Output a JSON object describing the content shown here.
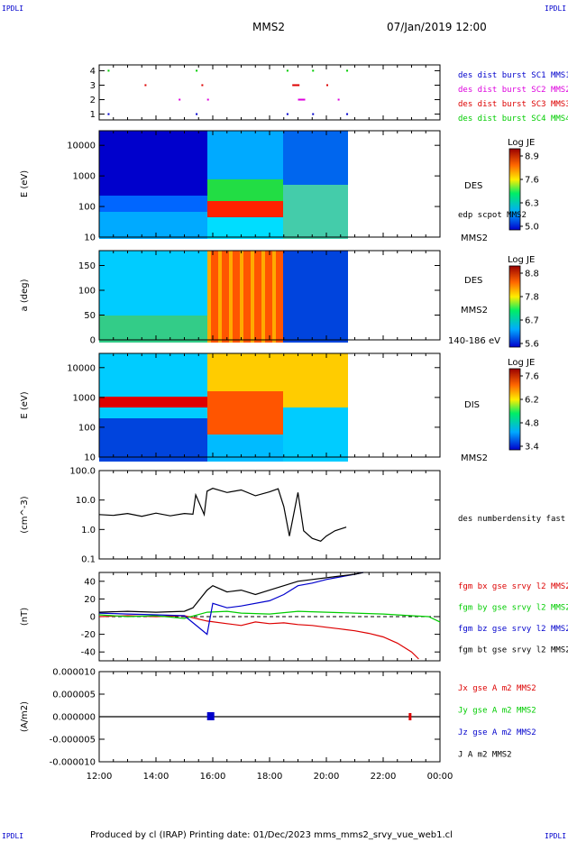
{
  "header": {
    "corner_tl": "IPDLI",
    "corner_tr": "IPDLI",
    "corner_bl": "IPDLI",
    "corner_br": "IPDLI",
    "spacecraft": "MMS2",
    "datetime": "07/Jan/2019 12:00"
  },
  "footer": {
    "text": "Produced by cl (IRAP)   Printing date: 01/Dec/2023   mms_mms2_srvy_vue_web1.cl"
  },
  "colors": {
    "blue": "#0000cc",
    "magenta": "#dd00dd",
    "red": "#dd0000",
    "green": "#00cc00",
    "black": "#000000"
  },
  "chart_data": [
    {
      "type": "scatter",
      "panel": "burst-availability",
      "ylim": [
        0.6,
        4.4
      ],
      "yticks": [
        "1",
        "2",
        "3",
        "4"
      ],
      "legend": [
        {
          "name": "des dist burst SC1 MMS1",
          "color": "#0000cc"
        },
        {
          "name": "des dist burst SC2 MMS2",
          "color": "#dd00dd"
        },
        {
          "name": "des dist burst SC3 MMS3",
          "color": "#dd0000"
        },
        {
          "name": "des dist burst SC4 MMS4",
          "color": "#00cc00"
        }
      ],
      "bursts_hours": [
        12.3,
        13.6,
        14.8,
        15.4,
        15.6,
        15.8,
        18.6,
        18.8,
        19.0,
        19.5,
        20.0,
        20.4,
        20.7
      ]
    },
    {
      "type": "heatmap",
      "panel": "des-energy",
      "ylabel": "E (eV)",
      "yscale": "log",
      "ylim": [
        10,
        30000
      ],
      "yticks": [
        "10",
        "100",
        "1000",
        "10000"
      ],
      "colorbar": {
        "title": "Log JE",
        "ticks": [
          "8.9",
          "7.6",
          "6.3",
          "5.0"
        ]
      },
      "right_labels": [
        "DES",
        "edp scpot MMS2",
        "MMS2"
      ],
      "data_end_hours": 20.7
    },
    {
      "type": "heatmap",
      "panel": "des-pitch-angle",
      "ylabel": "a (deg)",
      "ylim": [
        0,
        180
      ],
      "yticks": [
        "0",
        "50",
        "100",
        "150"
      ],
      "colorbar": {
        "title": "Log JE",
        "ticks": [
          "8.8",
          "7.8",
          "6.7",
          "5.6"
        ]
      },
      "right_labels": [
        "DES",
        "MMS2",
        "140-186 eV"
      ],
      "data_end_hours": 20.7
    },
    {
      "type": "heatmap",
      "panel": "dis-energy",
      "ylabel": "E (eV)",
      "yscale": "log",
      "ylim": [
        10,
        30000
      ],
      "yticks": [
        "10",
        "100",
        "1000",
        "10000"
      ],
      "colorbar": {
        "title": "Log JE",
        "ticks": [
          "7.6",
          "6.2",
          "4.8",
          "3.4"
        ]
      },
      "right_labels": [
        "DIS",
        "MMS2"
      ],
      "data_end_hours": 20.7
    },
    {
      "type": "line",
      "panel": "density",
      "ylabel": "(cm^-3)",
      "yscale": "log",
      "ylim": [
        0.1,
        100
      ],
      "yticks": [
        "0.1",
        "1.0",
        "10.0",
        "100.0"
      ],
      "series": [
        {
          "name": "des numberdensity fast M",
          "color": "#000000",
          "x": [
            12.0,
            12.5,
            13.0,
            13.5,
            14.0,
            14.5,
            15.0,
            15.3,
            15.4,
            15.7,
            15.8,
            16.0,
            16.5,
            17.0,
            17.5,
            18.0,
            18.3,
            18.5,
            18.7,
            19.0,
            19.2,
            19.5,
            19.8,
            20.0,
            20.3,
            20.7
          ],
          "y": [
            3.2,
            3.0,
            3.5,
            2.8,
            3.6,
            2.9,
            3.5,
            3.3,
            15.0,
            3.2,
            20.0,
            25.0,
            18.0,
            22.0,
            14.0,
            19.0,
            24.0,
            6.0,
            0.6,
            18.0,
            0.9,
            0.5,
            0.4,
            0.6,
            0.9,
            1.2
          ]
        }
      ]
    },
    {
      "type": "line",
      "panel": "magnetic-field",
      "ylabel": "(nT)",
      "ylim": [
        -50,
        50
      ],
      "yticks": [
        "-40",
        "-20",
        "0",
        "20",
        "40"
      ],
      "series": [
        {
          "name": "fgm bx gse srvy l2 MMS2",
          "color": "#dd0000",
          "x": [
            12.0,
            13.0,
            14.0,
            15.0,
            15.8,
            16.5,
            17.0,
            17.5,
            18.0,
            18.5,
            19.0,
            19.5,
            20.0,
            20.5,
            21.0,
            21.5,
            22.0,
            22.5,
            23.0,
            23.25
          ],
          "y": [
            0,
            1,
            0,
            1,
            -5,
            -8,
            -10,
            -6,
            -8,
            -7,
            -9,
            -10,
            -12,
            -14,
            -16,
            -19,
            -23,
            -30,
            -40,
            -48
          ]
        },
        {
          "name": "fgm by gse srvy l2 MMS2",
          "color": "#00cc00",
          "x": [
            12.0,
            13.0,
            14.0,
            15.0,
            15.8,
            16.5,
            17.0,
            18.0,
            19.0,
            20.0,
            21.0,
            22.0,
            23.0,
            23.6,
            24.0
          ],
          "y": [
            2,
            0,
            1,
            -2,
            5,
            6,
            4,
            3,
            6,
            5,
            4,
            3,
            1,
            0,
            -6
          ]
        },
        {
          "name": "fgm bz gse srvy l2 MMS2",
          "color": "#0000cc",
          "x": [
            12.0,
            13.0,
            14.0,
            15.0,
            15.8,
            16.0,
            16.5,
            17.0,
            18.0,
            18.5,
            19.0,
            19.5,
            20.0,
            20.5,
            21.0,
            21.3
          ],
          "y": [
            4,
            3,
            2,
            1,
            -20,
            15,
            10,
            12,
            18,
            25,
            35,
            38,
            42,
            45,
            48,
            50
          ]
        },
        {
          "name": "fgm bt gse srvy l2 MMS2",
          "color": "#000000",
          "x": [
            12.0,
            13.0,
            14.0,
            15.0,
            15.3,
            15.8,
            16.0,
            16.5,
            17.0,
            17.5,
            18.0,
            18.5,
            19.0,
            19.5,
            20.0,
            20.5,
            21.0,
            21.3
          ],
          "y": [
            5,
            6,
            5,
            6,
            10,
            30,
            35,
            28,
            30,
            25,
            30,
            35,
            40,
            42,
            44,
            46,
            48,
            50
          ]
        }
      ],
      "reference_line": 0
    },
    {
      "type": "line",
      "panel": "current-density",
      "ylabel": "(A/m2)",
      "ylim": [
        -0.0001,
        0.0001
      ],
      "yticks": [
        "-0.000010",
        "-0.000005",
        "0.000000",
        "0.000005",
        "0.000010"
      ],
      "series": [
        {
          "name": "Jx gse A m2 MMS2",
          "color": "#dd0000"
        },
        {
          "name": "Jy gse A m2 MMS2",
          "color": "#00cc00"
        },
        {
          "name": "Jz gse A m2 MMS2",
          "color": "#0000cc"
        },
        {
          "name": "J A m2 MMS2",
          "color": "#000000"
        }
      ]
    }
  ],
  "xaxis": {
    "xlim": [
      12,
      24
    ],
    "ticks": [
      "12:00",
      "14:00",
      "16:00",
      "18:00",
      "20:00",
      "22:00",
      "00:00"
    ]
  }
}
